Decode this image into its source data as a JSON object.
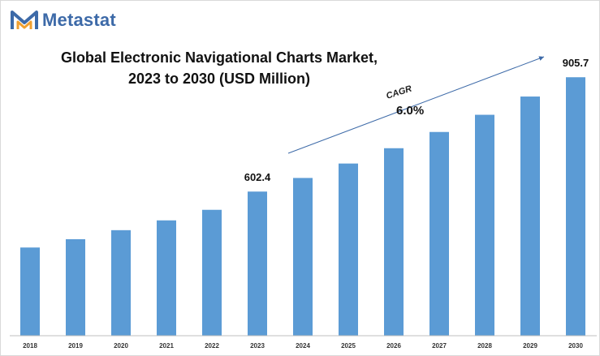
{
  "brand": {
    "name": "Metastat"
  },
  "chart_data": {
    "type": "bar",
    "title_line1": "Global Electronic Navigational Charts Market,",
    "title_line2": "2023 to 2030 (USD Million)",
    "categories": [
      "2018",
      "2019",
      "2020",
      "2021",
      "2022",
      "2023",
      "2024",
      "2025",
      "2026",
      "2027",
      "2028",
      "2029",
      "2030"
    ],
    "values": [
      454.0,
      476.0,
      500.0,
      526.0,
      554.0,
      602.4,
      638.5,
      676.8,
      717.4,
      760.5,
      806.1,
      854.5,
      905.7
    ],
    "value_labels": {
      "2023": "602.4",
      "2030": "905.7"
    },
    "ylim": [
      220,
      960
    ],
    "grid": false,
    "bar_color": "#5b9bd5",
    "annotation": {
      "label": "CAGR",
      "value": "6.0%"
    }
  }
}
